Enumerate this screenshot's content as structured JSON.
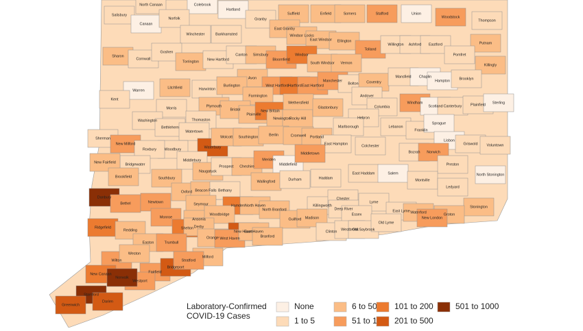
{
  "map": {
    "legend": {
      "title_lines": [
        "Laboratory-Confirmed",
        "COVID-19 Cases"
      ],
      "items": [
        {
          "label": "None",
          "color": "#fdf0e4"
        },
        {
          "label": "1 to 5",
          "color": "#fddbb8"
        },
        {
          "label": "6 to 50",
          "color": "#fbbd86"
        },
        {
          "label": "51 to 100",
          "color": "#f79c5c"
        },
        {
          "label": "101 to 200",
          "color": "#ec7b30"
        },
        {
          "label": "201 to 500",
          "color": "#d35a14"
        },
        {
          "label": "501 to 1000",
          "color": "#8a2f06"
        }
      ]
    },
    "towns": [
      [
        "North Canaan",
        "1 to 5"
      ],
      [
        "Colebrook",
        "None"
      ],
      [
        "Hartland",
        "None"
      ],
      [
        "Granby",
        "1 to 5"
      ],
      [
        "Suffield",
        "6 to 50"
      ],
      [
        "Enfield",
        "6 to 50"
      ],
      [
        "Somers",
        "6 to 50"
      ],
      [
        "Stafford",
        "51 to 100"
      ],
      [
        "Union",
        "None"
      ],
      [
        "Woodstock",
        "51 to 100"
      ],
      [
        "Thompson",
        "1 to 5"
      ],
      [
        "Salisbury",
        "1 to 5"
      ],
      [
        "Canaan",
        "None"
      ],
      [
        "Norfolk",
        "1 to 5"
      ],
      [
        "Winchester",
        "1 to 5"
      ],
      [
        "Barkhamsted",
        "1 to 5"
      ],
      [
        "East Granby",
        "6 to 50"
      ],
      [
        "Windsor Locks",
        "6 to 50"
      ],
      [
        "East Windsor",
        "6 to 50"
      ],
      [
        "Ellington",
        "6 to 50"
      ],
      [
        "Tolland",
        "51 to 100"
      ],
      [
        "Willington",
        "1 to 5"
      ],
      [
        "Ashford",
        "1 to 5"
      ],
      [
        "Eastford",
        "1 to 5"
      ],
      [
        "Putnam",
        "6 to 50"
      ],
      [
        "Sharon",
        "6 to 50"
      ],
      [
        "Cornwall",
        "1 to 5"
      ],
      [
        "Goshen",
        "1 to 5"
      ],
      [
        "Torrington",
        "6 to 50"
      ],
      [
        "New Hartford",
        "1 to 5"
      ],
      [
        "Canton",
        "1 to 5"
      ],
      [
        "Simsbury",
        "6 to 50"
      ],
      [
        "Bloomfield",
        "51 to 100"
      ],
      [
        "Windsor",
        "101 to 200"
      ],
      [
        "South Windsor",
        "6 to 50"
      ],
      [
        "Vernon",
        "6 to 50"
      ],
      [
        "Pomfret",
        "1 to 5"
      ],
      [
        "Killingly",
        "6 to 50"
      ],
      [
        "Avon",
        "6 to 50"
      ],
      [
        "Warren",
        "None"
      ],
      [
        "Litchfield",
        "6 to 50"
      ],
      [
        "Harwinton",
        "1 to 5"
      ],
      [
        "Burlington",
        "6 to 50"
      ],
      [
        "West Hartford",
        "51 to 100"
      ],
      [
        "Hartford",
        "101 to 200"
      ],
      [
        "East Hartford",
        "51 to 100"
      ],
      [
        "Manchester",
        "51 to 100"
      ],
      [
        "Bolton",
        "1 to 5"
      ],
      [
        "Coventry",
        "6 to 50"
      ],
      [
        "Mansfield",
        "1 to 5"
      ],
      [
        "Chaplin",
        "None"
      ],
      [
        "Hampton",
        "None"
      ],
      [
        "Brooklyn",
        "1 to 5"
      ],
      [
        "Farmington",
        "6 to 50"
      ],
      [
        "Kent",
        "1 to 5"
      ],
      [
        "Morris",
        "1 to 5"
      ],
      [
        "Plymouth",
        "6 to 50"
      ],
      [
        "Bristol",
        "6 to 50"
      ],
      [
        "Plainville",
        "6 to 50"
      ],
      [
        "New Britain",
        "101 to 200"
      ],
      [
        "Newington",
        "6 to 50"
      ],
      [
        "Wethersfield",
        "6 to 50"
      ],
      [
        "Rocky Hill",
        "6 to 50"
      ],
      [
        "Glastonbury",
        "6 to 50"
      ],
      [
        "Andover",
        "1 to 5"
      ],
      [
        "Columbia",
        "1 to 5"
      ],
      [
        "Windham",
        "51 to 100"
      ],
      [
        "Scotland",
        "None"
      ],
      [
        "Canterbury",
        "1 to 5"
      ],
      [
        "Plainfield",
        "1 to 5"
      ],
      [
        "Sterling",
        "None"
      ],
      [
        "Washington",
        "1 to 5"
      ],
      [
        "Bethlehem",
        "1 to 5"
      ],
      [
        "Thomaston",
        "1 to 5"
      ],
      [
        "Watertown",
        "1 to 5"
      ],
      [
        "Hebron",
        "1 to 5"
      ],
      [
        "Lebanon",
        "1 to 5"
      ],
      [
        "Franklin",
        "1 to 5"
      ],
      [
        "Sprague",
        "None"
      ],
      [
        "Marlborough",
        "1 to 5"
      ],
      [
        "Sherman",
        "1 to 5"
      ],
      [
        "New Milford",
        "51 to 100"
      ],
      [
        "Woodbury",
        "1 to 5"
      ],
      [
        "Roxbury",
        "1 to 5"
      ],
      [
        "Waterbury",
        "201 to 500"
      ],
      [
        "Wolcott",
        "6 to 50"
      ],
      [
        "Southington",
        "6 to 50"
      ],
      [
        "Berlin",
        "6 to 50"
      ],
      [
        "Cromwell",
        "6 to 50"
      ],
      [
        "Portland",
        "6 to 50"
      ],
      [
        "East Hampton",
        "1 to 5"
      ],
      [
        "Colchester",
        "1 to 5"
      ],
      [
        "Bozrah",
        "1 to 5"
      ],
      [
        "Lisbon",
        "None"
      ],
      [
        "Griswold",
        "1 to 5"
      ],
      [
        "Voluntown",
        "1 to 5"
      ],
      [
        "Norwich",
        "51 to 100"
      ],
      [
        "Middlebury",
        "1 to 5"
      ],
      [
        "Naugatuck",
        "6 to 50"
      ],
      [
        "Prospect",
        "1 to 5"
      ],
      [
        "Cheshire",
        "6 to 50"
      ],
      [
        "Meriden",
        "51 to 100"
      ],
      [
        "Middlefield",
        "None"
      ],
      [
        "Middletown",
        "51 to 100"
      ],
      [
        "Bridgewater",
        "1 to 5"
      ],
      [
        "New Fairfield",
        "6 to 50"
      ],
      [
        "Brookfield",
        "6 to 50"
      ],
      [
        "Southbury",
        "6 to 50"
      ],
      [
        "Preston",
        "1 to 5"
      ],
      [
        "Haddam",
        "1 to 5"
      ],
      [
        "East Haddam",
        "1 to 5"
      ],
      [
        "Salem",
        "None"
      ],
      [
        "Montville",
        "1 to 5"
      ],
      [
        "North Stonington",
        "None"
      ],
      [
        "Wallingford",
        "6 to 50"
      ],
      [
        "Durham",
        "1 to 5"
      ],
      [
        "Danbury",
        "501 to 1000"
      ],
      [
        "Bethel",
        "51 to 100"
      ],
      [
        "Newtown",
        "51 to 100"
      ],
      [
        "Oxford",
        "6 to 50"
      ],
      [
        "Beacon Falls",
        "6 to 50"
      ],
      [
        "Bethany",
        "1 to 5"
      ],
      [
        "Hamden",
        "101 to 200"
      ],
      [
        "North Haven",
        "6 to 50"
      ],
      [
        "Ledyard",
        "1 to 5"
      ],
      [
        "Seymour",
        "6 to 50"
      ],
      [
        "Killingworth",
        "1 to 5"
      ],
      [
        "Chester",
        "1 to 5"
      ],
      [
        "Deep River",
        "1 to 5"
      ],
      [
        "Lyme",
        "1 to 5"
      ],
      [
        "East Lyme",
        "1 to 5"
      ],
      [
        "Waterford",
        "6 to 50"
      ],
      [
        "Stonington",
        "6 to 50"
      ],
      [
        "Groton",
        "6 to 50"
      ],
      [
        "New London",
        "51 to 100"
      ],
      [
        "Essex",
        "1 to 5"
      ],
      [
        "Ridgefield",
        "101 to 200"
      ],
      [
        "Redding",
        "6 to 50"
      ],
      [
        "Monroe",
        "51 to 100"
      ],
      [
        "Ansonia",
        "6 to 50"
      ],
      [
        "Woodbridge",
        "6 to 50"
      ],
      [
        "Shelton",
        "101 to 200"
      ],
      [
        "Derby",
        "6 to 50"
      ],
      [
        "New Haven",
        "201 to 500"
      ],
      [
        "North Branford",
        "6 to 50"
      ],
      [
        "Guilford",
        "6 to 50"
      ],
      [
        "Madison",
        "6 to 50"
      ],
      [
        "Clinton",
        "1 to 5"
      ],
      [
        "Westbrook",
        "1 to 5"
      ],
      [
        "Old Saybrook",
        "1 to 5"
      ],
      [
        "Old Lyme",
        "1 to 5"
      ],
      [
        "Orange",
        "6 to 50"
      ],
      [
        "West Haven",
        "51 to 100"
      ],
      [
        "East Haven",
        "6 to 50"
      ],
      [
        "Branford",
        "6 to 50"
      ],
      [
        "Easton",
        "6 to 50"
      ],
      [
        "Trumbull",
        "51 to 100"
      ],
      [
        "Milford",
        "6 to 50"
      ],
      [
        "Wilton",
        "51 to 100"
      ],
      [
        "Weston",
        "6 to 50"
      ],
      [
        "Fairfield",
        "51 to 100"
      ],
      [
        "Bridgeport",
        "201 to 500"
      ],
      [
        "Stratford",
        "51 to 100"
      ],
      [
        "New Canaan",
        "101 to 200"
      ],
      [
        "Westport",
        "51 to 100"
      ],
      [
        "Norwalk",
        "501 to 1000"
      ],
      [
        "Stamford",
        "501 to 1000"
      ],
      [
        "Greenwich",
        "201 to 500"
      ],
      [
        "Darien",
        "201 to 500"
      ]
    ]
  }
}
